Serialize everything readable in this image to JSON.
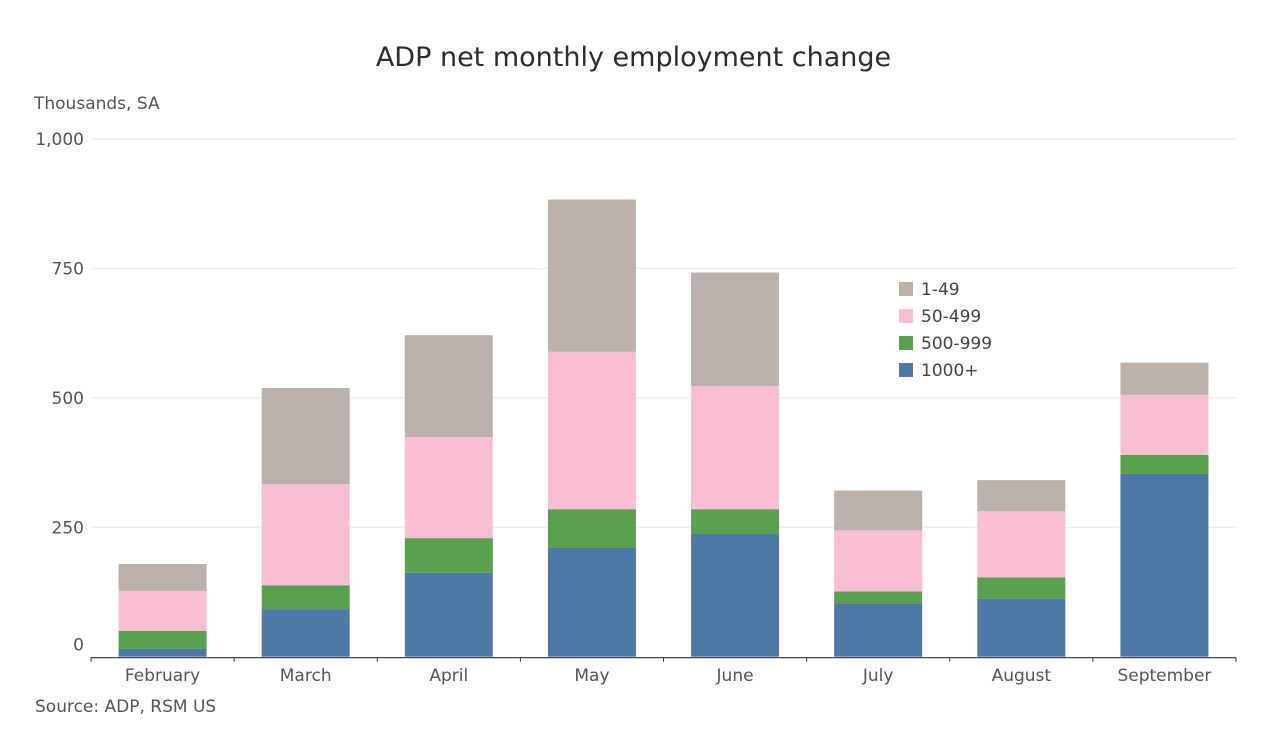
{
  "chart_data": {
    "type": "bar",
    "stacked": true,
    "title": "ADP net monthly employment change",
    "ylabel": "Thousands, SA",
    "xlabel": "",
    "source": "Source: ADP, RSM US",
    "categories": [
      "February",
      "March",
      "April",
      "May",
      "June",
      "July",
      "August",
      "September"
    ],
    "ylim": [
      0,
      1000
    ],
    "yticks": [
      0,
      250,
      500,
      750,
      1000
    ],
    "ytick_labels": [
      "0",
      "250",
      "500",
      "750",
      "1,000"
    ],
    "grid": true,
    "legend_position": "top-right-inside",
    "series": [
      {
        "name": "1000+",
        "color": "#4e79a7",
        "values": [
          15,
          92,
          162,
          210,
          237,
          103,
          112,
          353
        ]
      },
      {
        "name": "500-999",
        "color": "#59a14f",
        "values": [
          35,
          46,
          67,
          75,
          48,
          23,
          41,
          37
        ]
      },
      {
        "name": "50-499",
        "color": "#f9bed3",
        "values": [
          77,
          195,
          195,
          304,
          238,
          118,
          128,
          116
        ]
      },
      {
        "name": "1-49",
        "color": "#bab0ac",
        "values": [
          52,
          186,
          197,
          294,
          219,
          77,
          60,
          62
        ]
      }
    ],
    "legend_order": [
      "1-49",
      "50-499",
      "500-999",
      "1000+"
    ]
  }
}
